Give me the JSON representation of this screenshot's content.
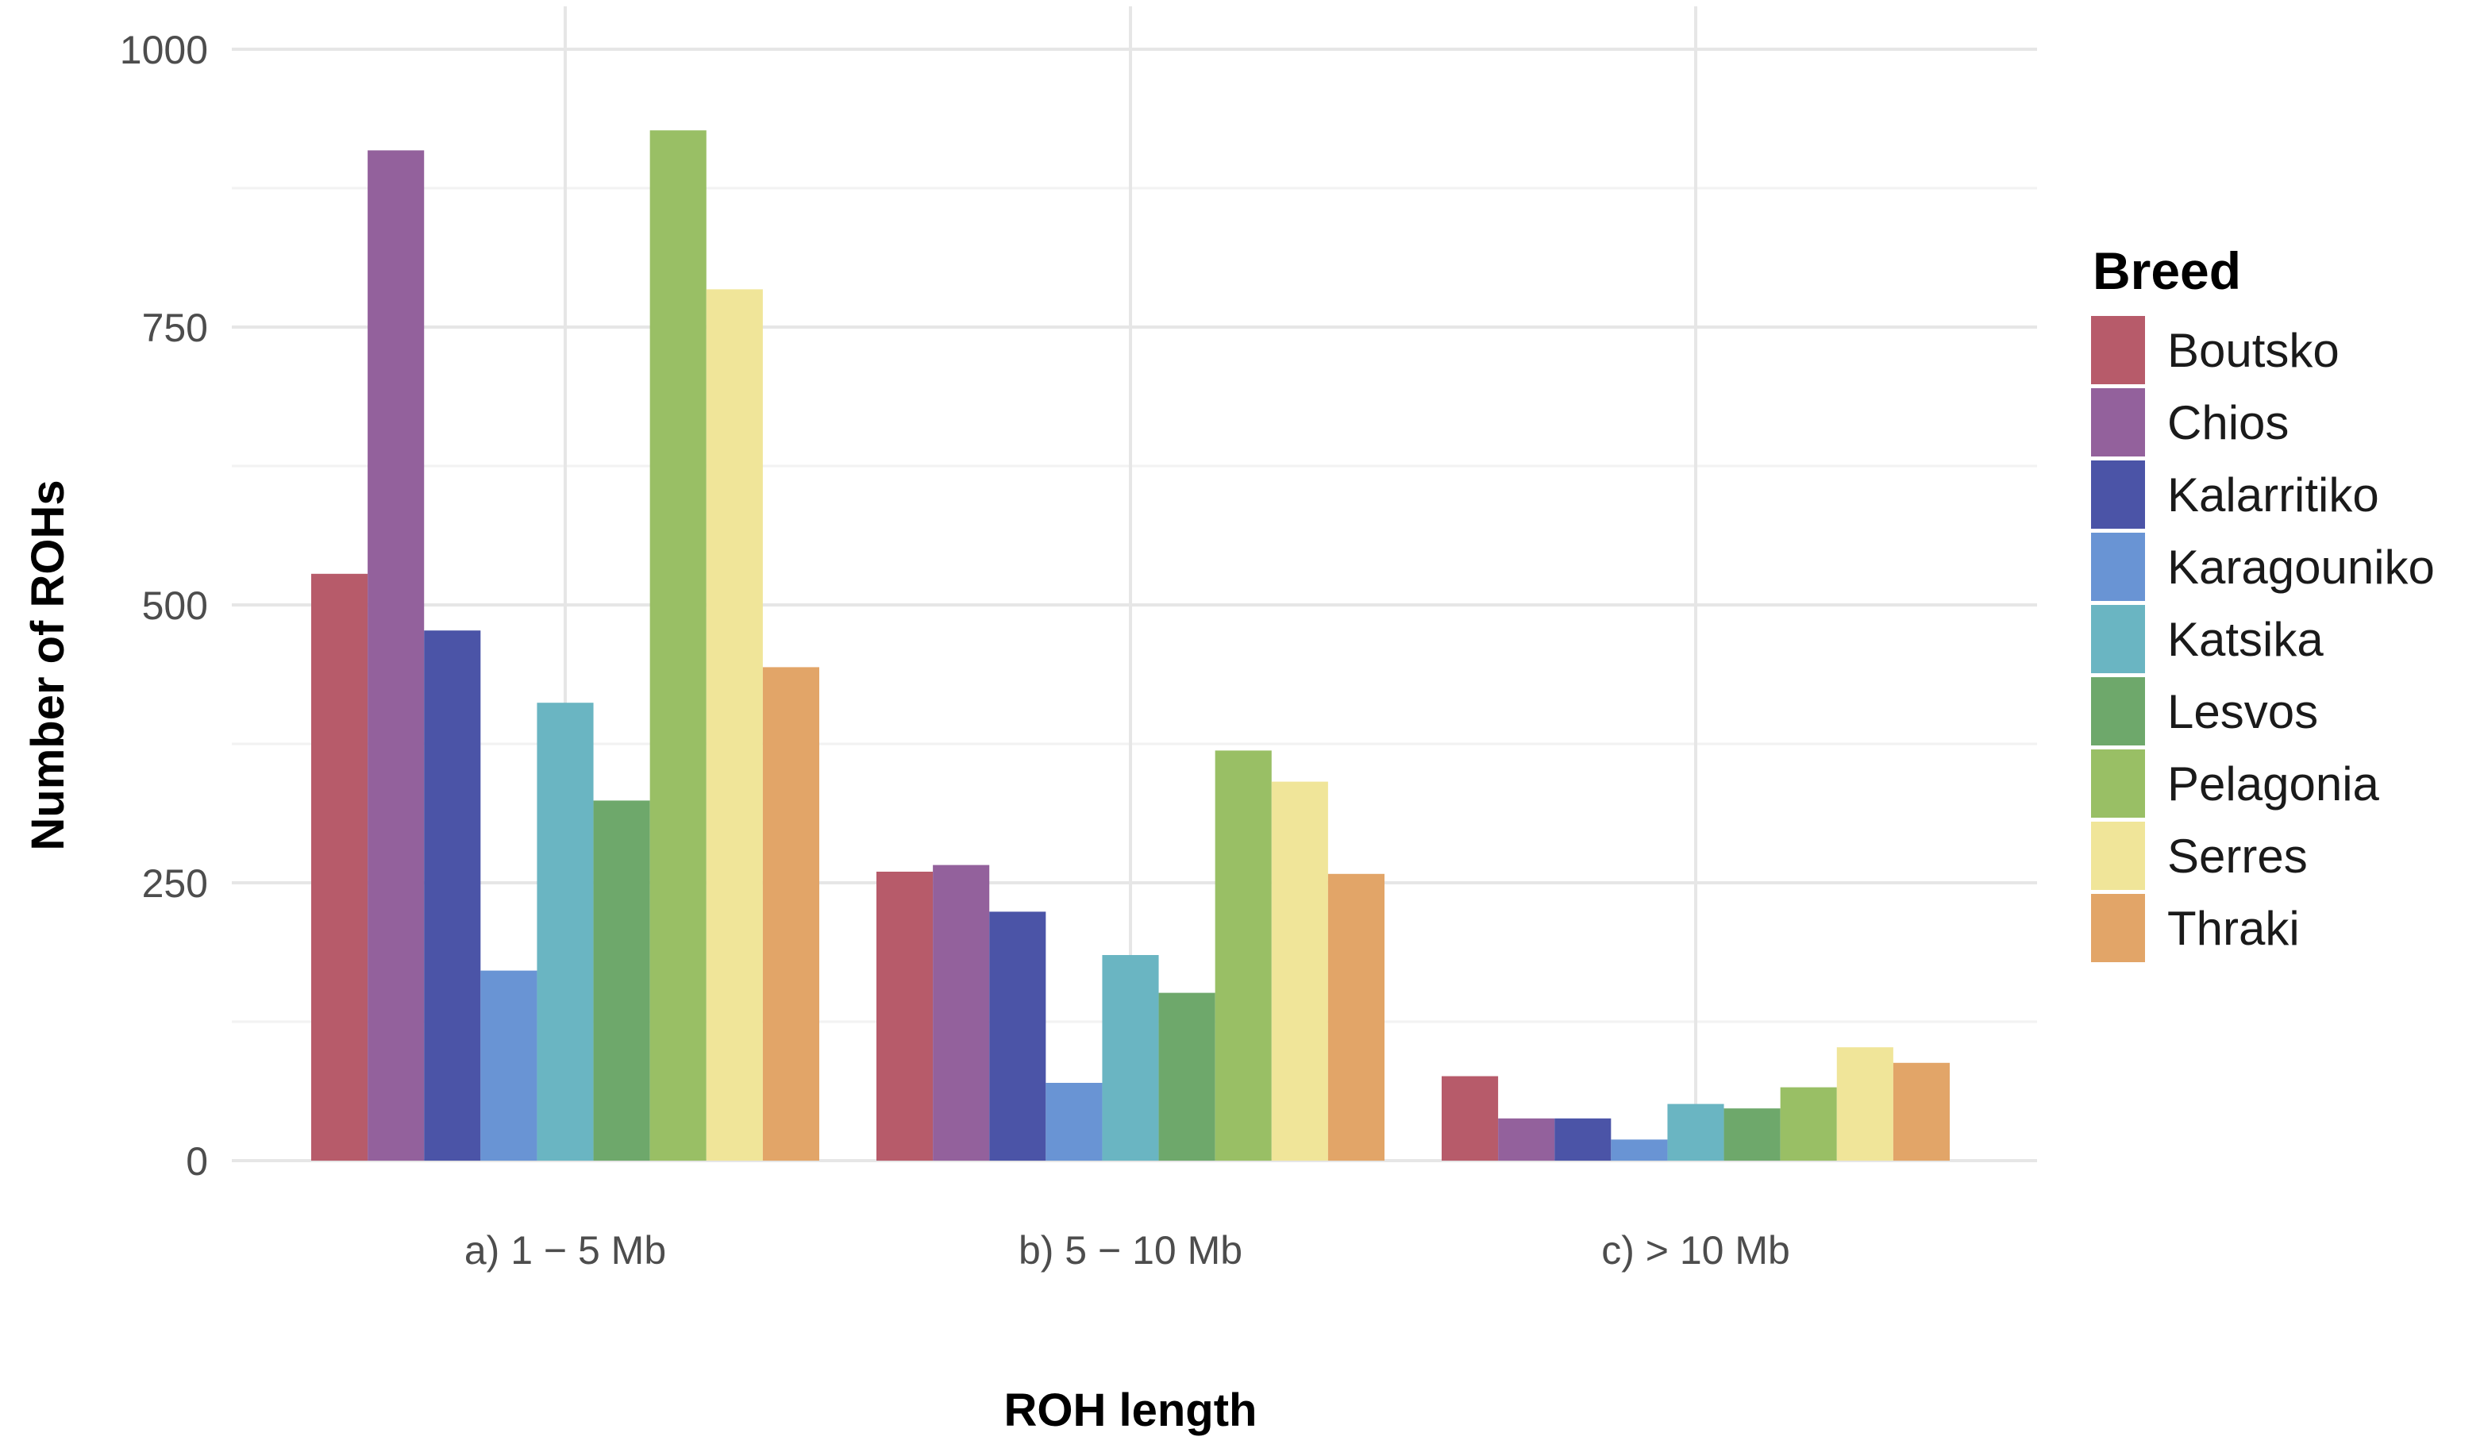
{
  "chart_data": {
    "type": "bar",
    "title": "",
    "xlabel": "ROH length",
    "ylabel": "Number of ROHs",
    "categories": [
      "a) 1 − 5 Mb",
      "b) 5 − 10 Mb",
      "c) > 10 Mb"
    ],
    "ylim": [
      0,
      1000
    ],
    "yticks": [
      0,
      250,
      500,
      750,
      1000
    ],
    "grid": true,
    "legend": {
      "title": "Breed",
      "position": "right"
    },
    "series": [
      {
        "name": "Boutsko",
        "color": "#b75b6a",
        "values": [
          528,
          260,
          76
        ]
      },
      {
        "name": "Chios",
        "color": "#93619c",
        "values": [
          909,
          266,
          38
        ]
      },
      {
        "name": "Kalarritiko",
        "color": "#4b54a7",
        "values": [
          477,
          224,
          38
        ]
      },
      {
        "name": "Karagouniko",
        "color": "#6994d4",
        "values": [
          171,
          70,
          19
        ]
      },
      {
        "name": "Katsika",
        "color": "#6ab5c2",
        "values": [
          412,
          185,
          51
        ]
      },
      {
        "name": "Lesvos",
        "color": "#6ea86b",
        "values": [
          324,
          151,
          47
        ]
      },
      {
        "name": "Pelagonia",
        "color": "#99bf65",
        "values": [
          927,
          369,
          66
        ]
      },
      {
        "name": "Serres",
        "color": "#f0e599",
        "values": [
          784,
          341,
          102
        ]
      },
      {
        "name": "Thraki",
        "color": "#e2a568",
        "values": [
          444,
          258,
          88
        ]
      }
    ]
  }
}
